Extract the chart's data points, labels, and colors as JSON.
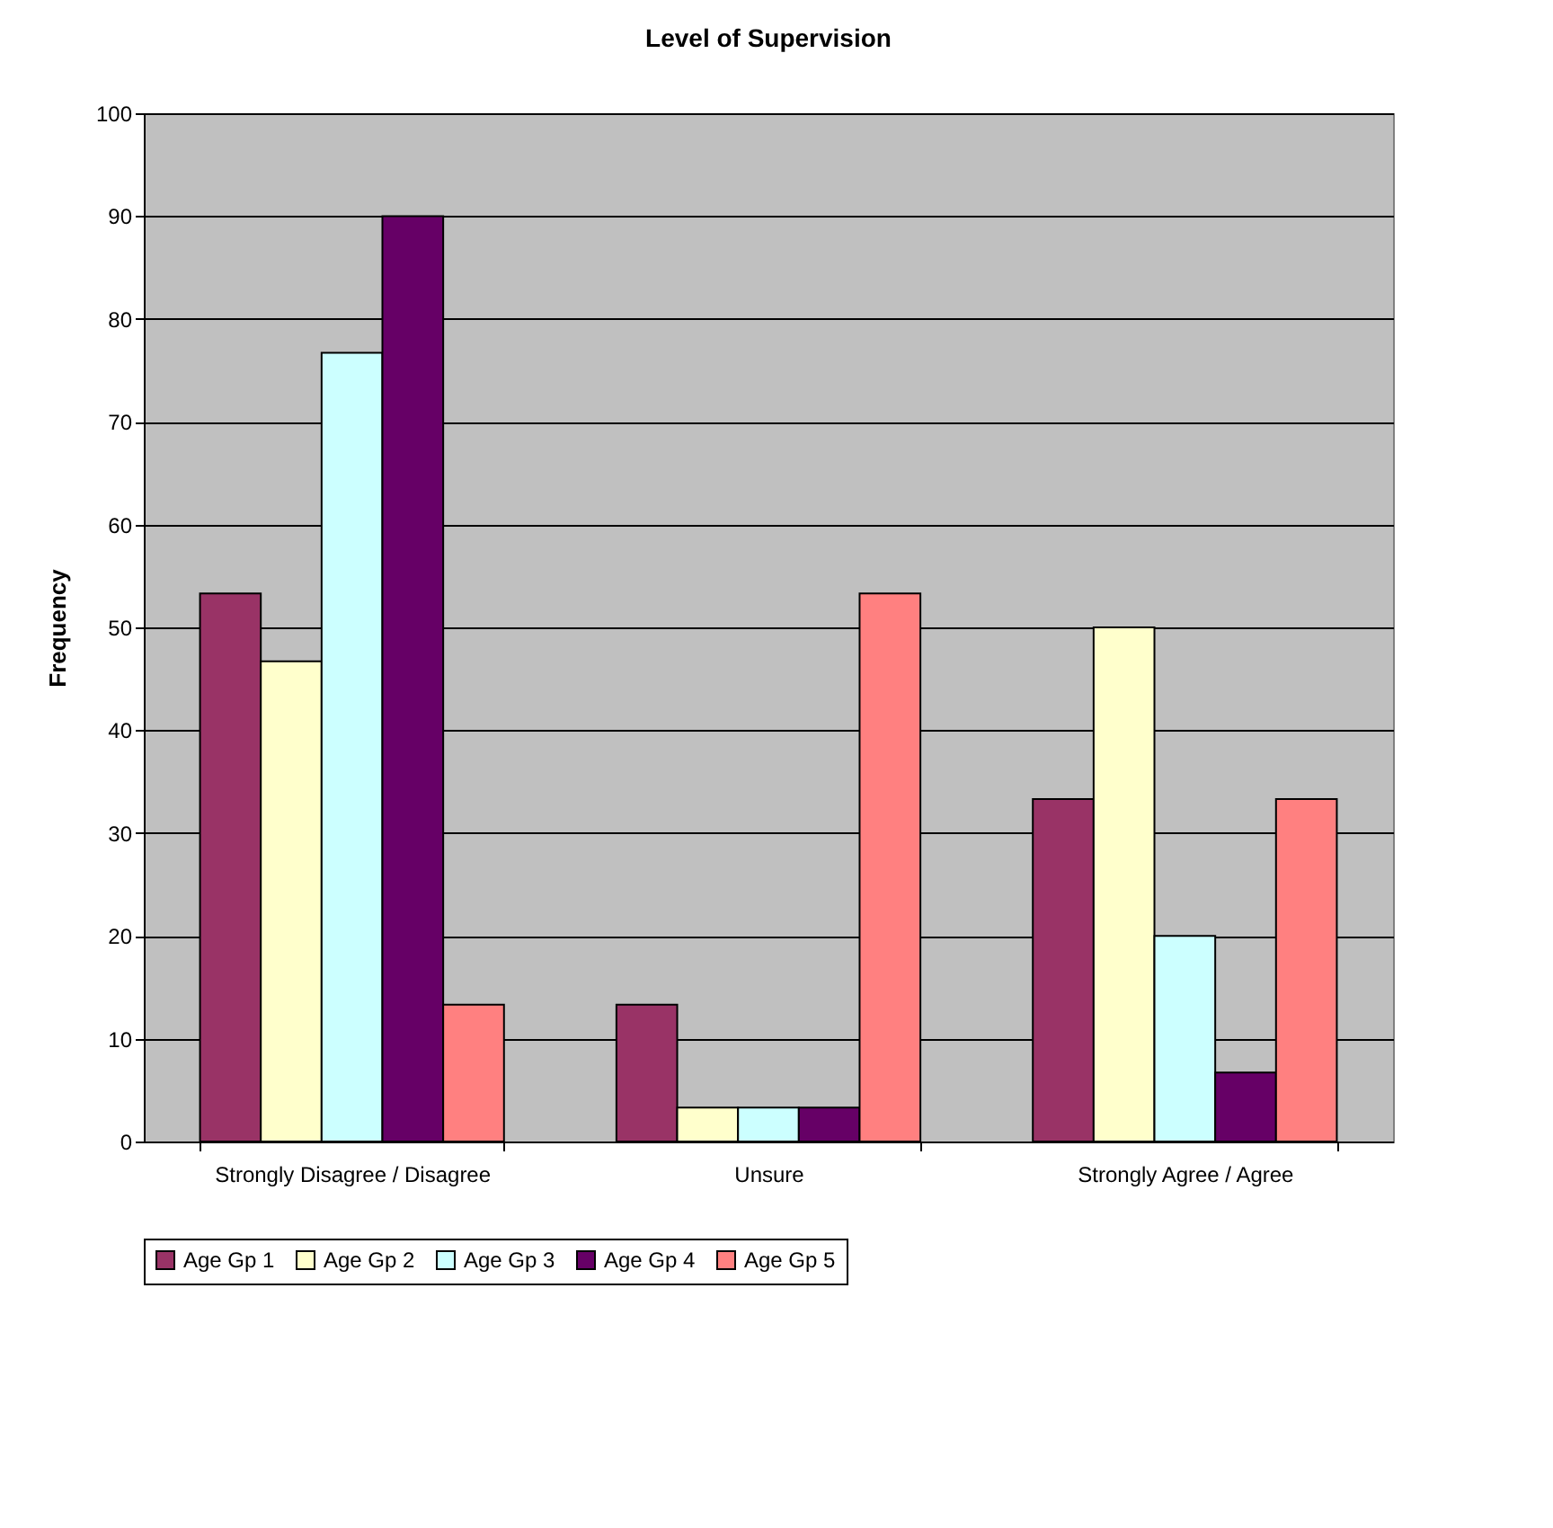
{
  "chart_data": {
    "type": "bar",
    "title": "Level of Supervision",
    "ylabel": "Frequency",
    "categories": [
      "Strongly Disagree / Disagree",
      "Unsure",
      "Strongly Agree / Agree"
    ],
    "series": [
      {
        "name": "Age Gp 1",
        "color": "#993366",
        "values": [
          53.3,
          13.3,
          33.3
        ]
      },
      {
        "name": "Age Gp 2",
        "color": "#ffffcc",
        "values": [
          46.7,
          3.3,
          50
        ]
      },
      {
        "name": "Age Gp 3",
        "color": "#ccffff",
        "values": [
          76.7,
          3.3,
          20
        ]
      },
      {
        "name": "Age Gp 4",
        "color": "#660066",
        "values": [
          90,
          3.3,
          6.7
        ]
      },
      {
        "name": "Age Gp 5",
        "color": "#ff8080",
        "values": [
          13.3,
          53.3,
          33.3
        ]
      }
    ],
    "ylim": [
      0,
      100
    ],
    "yticks": [
      0,
      10,
      20,
      30,
      40,
      50,
      60,
      70,
      80,
      90,
      100
    ],
    "grid": "y",
    "legend": "bottom"
  }
}
